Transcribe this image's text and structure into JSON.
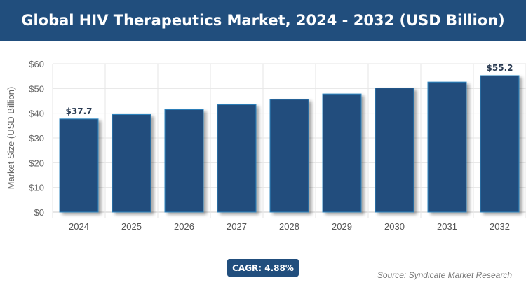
{
  "chart_data": {
    "type": "bar",
    "title": "Global HIV Therapeutics Market, 2024 - 2032 (USD Billion)",
    "xlabel": "",
    "ylabel": "Market Size (USD Billion)",
    "categories": [
      "2024",
      "2025",
      "2026",
      "2027",
      "2028",
      "2029",
      "2030",
      "2031",
      "2032"
    ],
    "values": [
      37.7,
      39.5,
      41.5,
      43.5,
      45.6,
      47.8,
      50.2,
      52.6,
      55.2
    ],
    "data_labels": {
      "0": "$37.7",
      "8": "$55.2"
    },
    "ylim": [
      0,
      60
    ],
    "yticks": [
      "$0",
      "$10",
      "$20",
      "$30",
      "$40",
      "$50",
      "$60"
    ],
    "grid": true,
    "bar_color": "#214e7d",
    "bar_edge_color": "#2e86c1"
  },
  "cagr": "CAGR: 4.88%",
  "source": "Source: Syndicate Market Research"
}
